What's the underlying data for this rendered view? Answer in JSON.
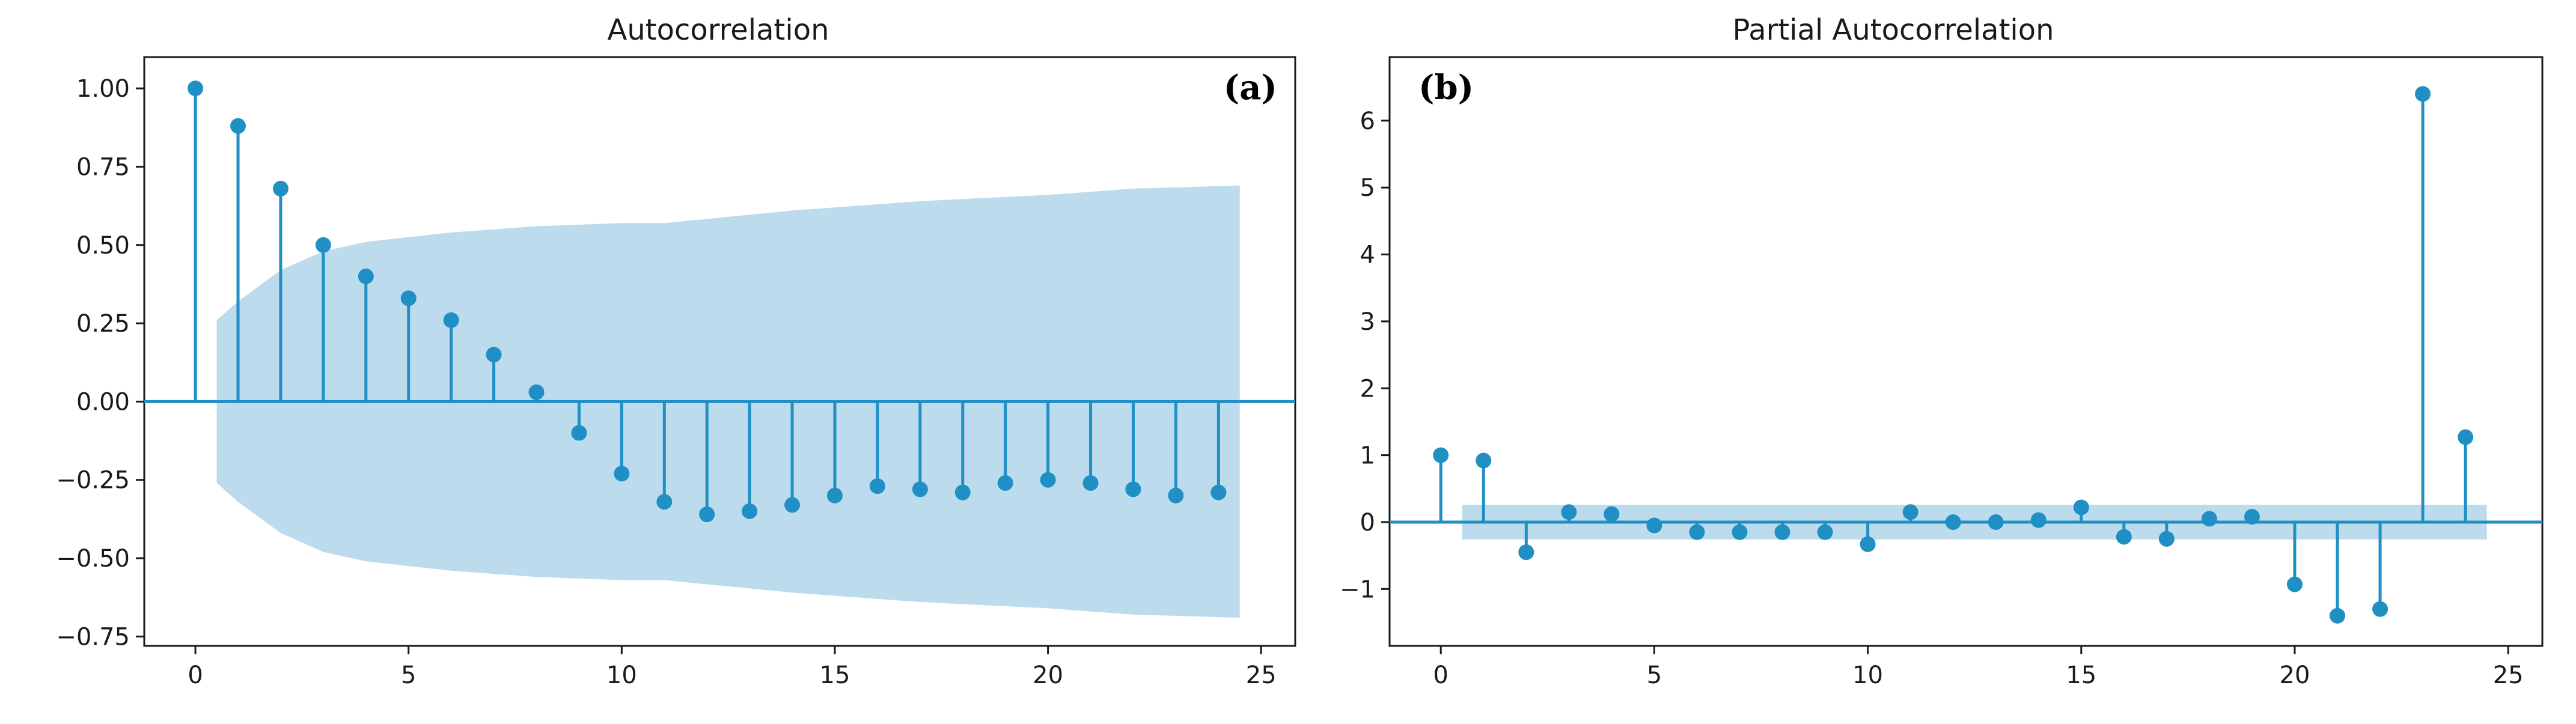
{
  "chart_data": [
    {
      "type": "stem",
      "title": "Autocorrelation",
      "panel_label": "(a)",
      "xlabel": "",
      "ylabel": "",
      "xlim": [
        -1.2,
        25.8
      ],
      "ylim": [
        -0.78,
        1.1
      ],
      "xticks": [
        0,
        5,
        10,
        15,
        20,
        25
      ],
      "yticks": [
        -0.75,
        -0.5,
        -0.25,
        0.0,
        0.25,
        0.5,
        0.75,
        1.0
      ],
      "ytick_labels": [
        "−0.75",
        "−0.50",
        "−0.25",
        "0.00",
        "0.25",
        "0.50",
        "0.75",
        "1.00"
      ],
      "x": [
        0,
        1,
        2,
        3,
        4,
        5,
        6,
        7,
        8,
        9,
        10,
        11,
        12,
        13,
        14,
        15,
        16,
        17,
        18,
        19,
        20,
        21,
        22,
        23,
        24
      ],
      "values": [
        1.0,
        0.88,
        0.68,
        0.5,
        0.4,
        0.33,
        0.26,
        0.15,
        0.03,
        -0.1,
        -0.23,
        -0.32,
        -0.36,
        -0.35,
        -0.33,
        -0.3,
        -0.27,
        -0.28,
        -0.29,
        -0.26,
        -0.25,
        -0.26,
        -0.28,
        -0.3,
        -0.29
      ],
      "confidence_band": {
        "x": [
          0.5,
          1,
          2,
          3,
          4,
          6,
          8,
          10,
          11,
          14,
          17,
          20,
          22,
          24.5
        ],
        "upper": [
          0.26,
          0.32,
          0.42,
          0.48,
          0.51,
          0.54,
          0.56,
          0.57,
          0.57,
          0.61,
          0.64,
          0.66,
          0.68,
          0.69
        ],
        "lower": [
          -0.26,
          -0.32,
          -0.42,
          -0.48,
          -0.51,
          -0.54,
          -0.56,
          -0.57,
          -0.57,
          -0.61,
          -0.64,
          -0.66,
          -0.68,
          -0.69
        ]
      }
    },
    {
      "type": "stem",
      "title": "Partial Autocorrelation",
      "panel_label": "(b)",
      "xlabel": "",
      "ylabel": "",
      "xlim": [
        -1.2,
        25.8
      ],
      "ylim": [
        -1.85,
        6.95
      ],
      "xticks": [
        0,
        5,
        10,
        15,
        20,
        25
      ],
      "yticks": [
        -1,
        0,
        1,
        2,
        3,
        4,
        5,
        6
      ],
      "ytick_labels": [
        "−1",
        "0",
        "1",
        "2",
        "3",
        "4",
        "5",
        "6"
      ],
      "x": [
        0,
        1,
        2,
        3,
        4,
        5,
        6,
        7,
        8,
        9,
        10,
        11,
        12,
        13,
        14,
        15,
        16,
        17,
        18,
        19,
        20,
        21,
        22,
        23,
        24
      ],
      "values": [
        1.0,
        0.92,
        -0.45,
        0.15,
        0.12,
        -0.05,
        -0.15,
        -0.15,
        -0.15,
        -0.15,
        -0.33,
        0.15,
        0.0,
        0.0,
        0.03,
        0.22,
        -0.22,
        -0.25,
        0.05,
        0.08,
        -0.93,
        -1.4,
        -1.3,
        6.4,
        1.27
      ],
      "confidence_band": {
        "x": [
          0.5,
          24.5
        ],
        "upper": [
          0.26,
          0.26
        ],
        "lower": [
          -0.26,
          -0.26
        ]
      }
    }
  ],
  "colors": {
    "stem": "#1f8fc4",
    "band": "#bcdcee",
    "axes": "#1a1a1a"
  }
}
